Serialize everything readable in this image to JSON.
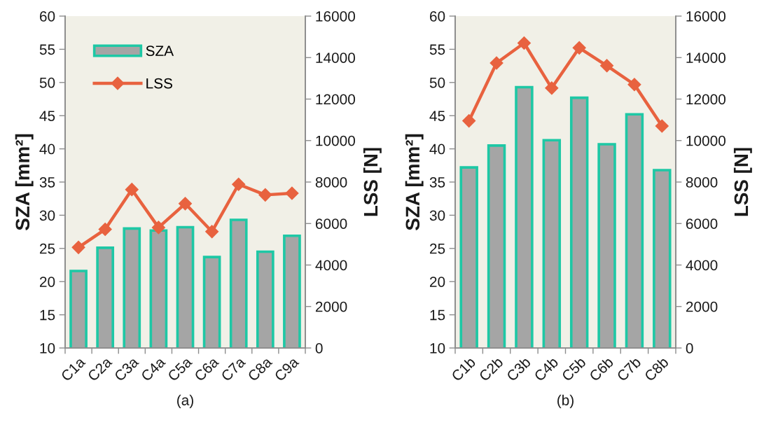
{
  "chart_data": [
    {
      "type": "bar",
      "title": "(a)",
      "ylabel": "SZA [mm²]",
      "y2label": "LSS [N]",
      "categories": [
        "C1a",
        "C2a",
        "C3a",
        "C4a",
        "C5a",
        "C6a",
        "C7a",
        "C8a",
        "C9a"
      ],
      "series": [
        {
          "name": "SZA",
          "color": "#a5a5a5",
          "values": [
            21.6,
            25.1,
            28.0,
            27.7,
            28.2,
            23.7,
            29.3,
            24.5,
            26.9
          ]
        },
        {
          "name": "LSS",
          "type": "line",
          "axis": "y2",
          "color": "#e8623f",
          "values": [
            4850,
            5720,
            7640,
            5810,
            6960,
            5610,
            7890,
            7380,
            7460
          ]
        }
      ],
      "ylim": [
        10,
        60
      ],
      "yticks": [
        10,
        15,
        20,
        25,
        30,
        35,
        40,
        45,
        50,
        55,
        60
      ],
      "y2lim": [
        0,
        16000
      ],
      "y2ticks": [
        0,
        2000,
        4000,
        6000,
        8000,
        10000,
        12000,
        14000,
        16000
      ],
      "marker": "diamond",
      "legend": "top left"
    },
    {
      "type": "bar",
      "title": "(b)",
      "ylabel": "SZA [mm²]",
      "y2label": "LSS [N]",
      "categories": [
        "C1b",
        "C2b",
        "C3b",
        "C4b",
        "C5b",
        "C6b",
        "C7b",
        "C8b"
      ],
      "series": [
        {
          "color": "#a5a5a5",
          "values": [
            37.2,
            40.5,
            49.3,
            41.3,
            47.7,
            40.7,
            45.2,
            36.8
          ]
        },
        {
          "type": "line",
          "axis": "y2",
          "color": "#e8623f",
          "values": [
            10950,
            13740,
            14700,
            12530,
            14470,
            13610,
            12700,
            10700
          ]
        }
      ],
      "ylim": [
        10,
        60
      ],
      "yticks": [
        10,
        15,
        20,
        25,
        30,
        35,
        40,
        45,
        50,
        55,
        60
      ],
      "y2lim": [
        0,
        16000
      ],
      "y2ticks": [
        0,
        2000,
        4000,
        6000,
        8000,
        10000,
        12000,
        14000,
        16000
      ],
      "marker": "diamond",
      "legend": false
    }
  ]
}
